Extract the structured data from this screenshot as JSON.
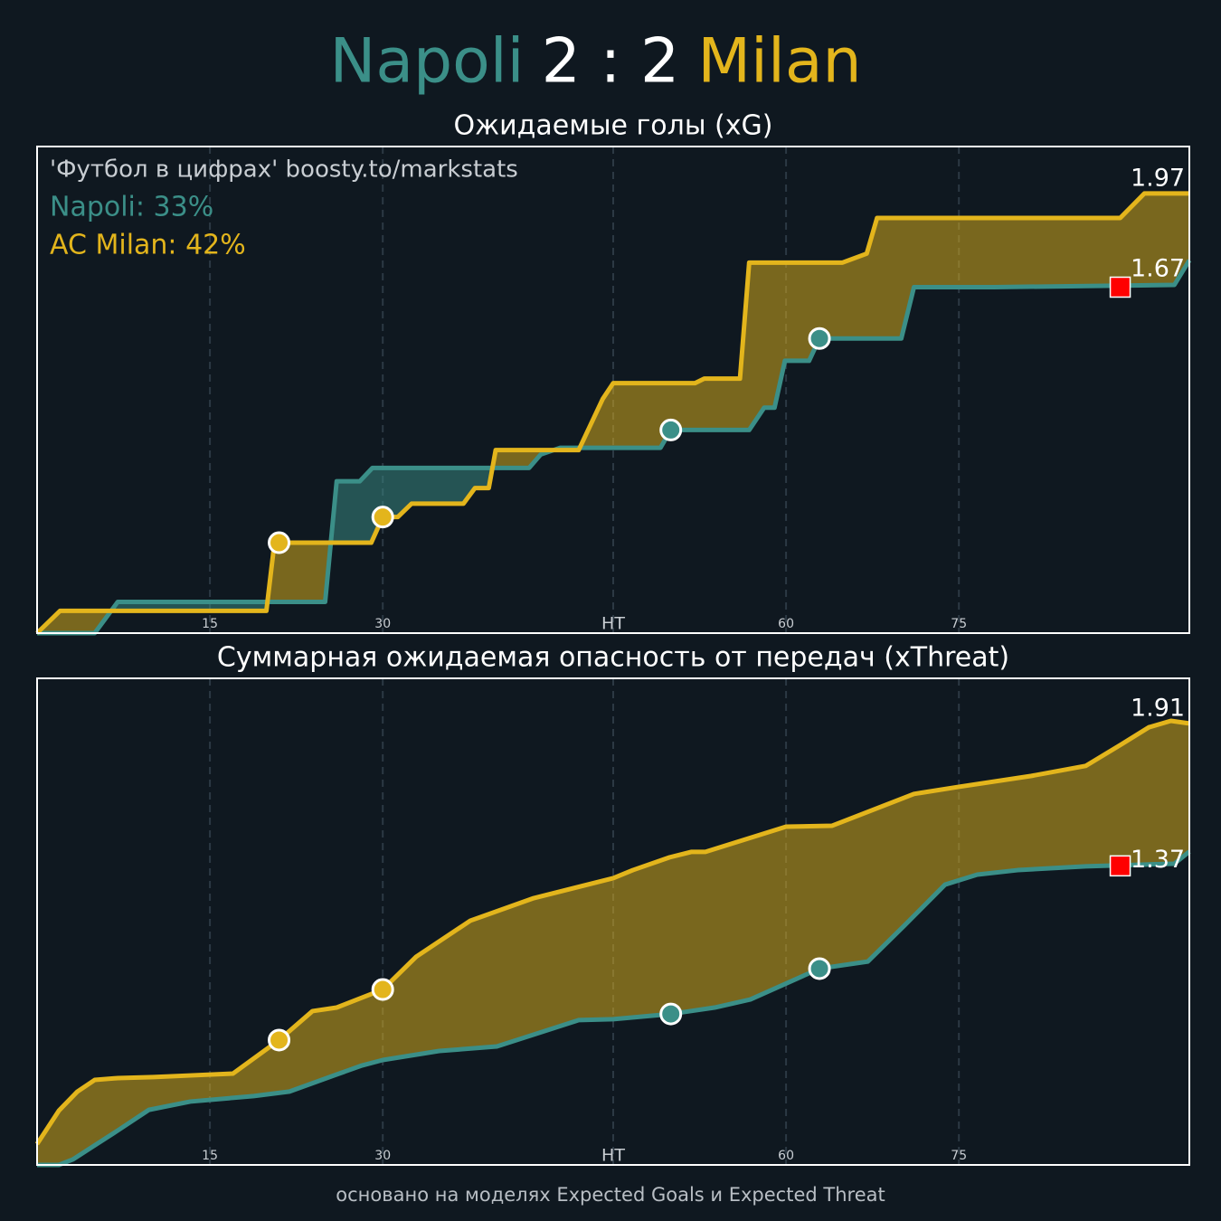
{
  "header": {
    "home": "Napoli",
    "score": "2 : 2",
    "away": "Milan",
    "home_color": "#3b8f88",
    "score_color": "#ffffff",
    "away_color": "#e3b51c"
  },
  "chart_data": [
    {
      "type": "line",
      "title": "Ожидаемые голы (xG)",
      "xlim": [
        0,
        100
      ],
      "xticks": [
        15,
        30,
        {
          "value": 50,
          "label": "HT"
        },
        {
          "value": 65,
          "label": "60"
        },
        {
          "value": 80,
          "label": "75"
        }
      ],
      "ylim": [
        0,
        2.18
      ],
      "grid": true,
      "annotations": [
        {
          "text": "'Футбол в цифрах' boosty.to/markstats",
          "color": "#c8cdd2"
        },
        {
          "text": "Napoli: 33%",
          "color": "#3b8f88"
        },
        {
          "text": "AC Milan: 42%",
          "color": "#e3b51c"
        }
      ],
      "series": [
        {
          "color": "#3b8f88",
          "x": [
            0,
            5,
            7,
            25,
            26,
            28,
            29.1,
            42.7,
            43.7,
            45.4,
            54.1,
            55,
            61.8,
            63.1,
            64,
            64.9,
            67,
            67.9,
            75,
            76.1,
            83.1,
            98.7,
            100
          ],
          "values": [
            0,
            0,
            0.14,
            0.14,
            0.68,
            0.68,
            0.74,
            0.74,
            0.8,
            0.83,
            0.83,
            0.91,
            0.91,
            1.01,
            1.01,
            1.22,
            1.22,
            1.32,
            1.32,
            1.55,
            1.55,
            1.56,
            1.67
          ],
          "markers": [
            {
              "x": 55,
              "value": 0.91
            },
            {
              "x": 67.9,
              "value": 1.32
            }
          ]
        },
        {
          "color": "#e3b51c",
          "x": [
            0,
            2,
            19.9,
            20.6,
            29,
            30,
            31.3,
            32.5,
            37,
            38,
            39.2,
            39.8,
            47,
            49.1,
            50,
            57.1,
            57.9,
            61,
            61.8,
            69.9,
            72,
            72.9,
            94,
            96.1,
            100
          ],
          "values": [
            0,
            0.1,
            0.1,
            0.405,
            0.405,
            0.52,
            0.52,
            0.58,
            0.58,
            0.65,
            0.65,
            0.82,
            0.82,
            1.05,
            1.12,
            1.12,
            1.14,
            1.14,
            1.66,
            1.66,
            1.7,
            1.86,
            1.86,
            1.97,
            1.97
          ],
          "markers": [
            {
              "x": 21,
              "value": 0.405
            },
            {
              "x": 30,
              "value": 0.52
            }
          ]
        }
      ],
      "red_card": {
        "x": 94,
        "value": 1.55
      }
    },
    {
      "type": "line",
      "title": "Суммарная ожидаемая опасность от передач (xThreat)",
      "xlim": [
        0,
        100
      ],
      "xticks": [
        15,
        30,
        {
          "value": 50,
          "label": "HT"
        },
        {
          "value": 65,
          "label": "60"
        },
        {
          "value": 80,
          "label": "75"
        }
      ],
      "ylim": [
        0.05,
        2.1
      ],
      "grid": true,
      "series": [
        {
          "color": "#3b8f88",
          "x": [
            0,
            1.9,
            3.1,
            7,
            9.7,
            13.3,
            18.8,
            21.9,
            26,
            28.2,
            30,
            34.9,
            39.9,
            47,
            50,
            55,
            58.8,
            61.9,
            67.9,
            72.1,
            75.3,
            78.8,
            81.6,
            85.1,
            91,
            98.7,
            100
          ],
          "values": [
            0.05,
            0.05,
            0.073,
            0.195,
            0.282,
            0.317,
            0.34,
            0.359,
            0.431,
            0.469,
            0.492,
            0.53,
            0.549,
            0.66,
            0.664,
            0.686,
            0.713,
            0.747,
            0.877,
            0.907,
            1.06,
            1.231,
            1.273,
            1.292,
            1.308,
            1.319,
            1.37
          ],
          "markers": [
            {
              "x": 55,
              "value": 0.686
            },
            {
              "x": 67.9,
              "value": 0.877
            }
          ]
        },
        {
          "color": "#e3b51c",
          "x": [
            0,
            1.9,
            3.5,
            5,
            7,
            10.1,
            13.3,
            17,
            21,
            23.9,
            26,
            30,
            32.9,
            37.6,
            43.1,
            50,
            51.7,
            54.9,
            56.8,
            58,
            65,
            69,
            76.1,
            80,
            86.3,
            91,
            94.1,
            96.5,
            98.4,
            100
          ],
          "values": [
            0.138,
            0.279,
            0.359,
            0.408,
            0.416,
            0.42,
            0.427,
            0.435,
            0.576,
            0.698,
            0.713,
            0.789,
            0.927,
            1.079,
            1.174,
            1.258,
            1.292,
            1.346,
            1.369,
            1.369,
            1.475,
            1.479,
            1.613,
            1.643,
            1.689,
            1.731,
            1.822,
            1.894,
            1.921,
            1.91
          ],
          "markers": [
            {
              "x": 21,
              "value": 0.576
            },
            {
              "x": 30,
              "value": 0.789
            }
          ]
        }
      ],
      "red_card": {
        "x": 94,
        "value": 1.31
      }
    }
  ],
  "footer": "основано на моделях Expected Goals и Expected Threat"
}
